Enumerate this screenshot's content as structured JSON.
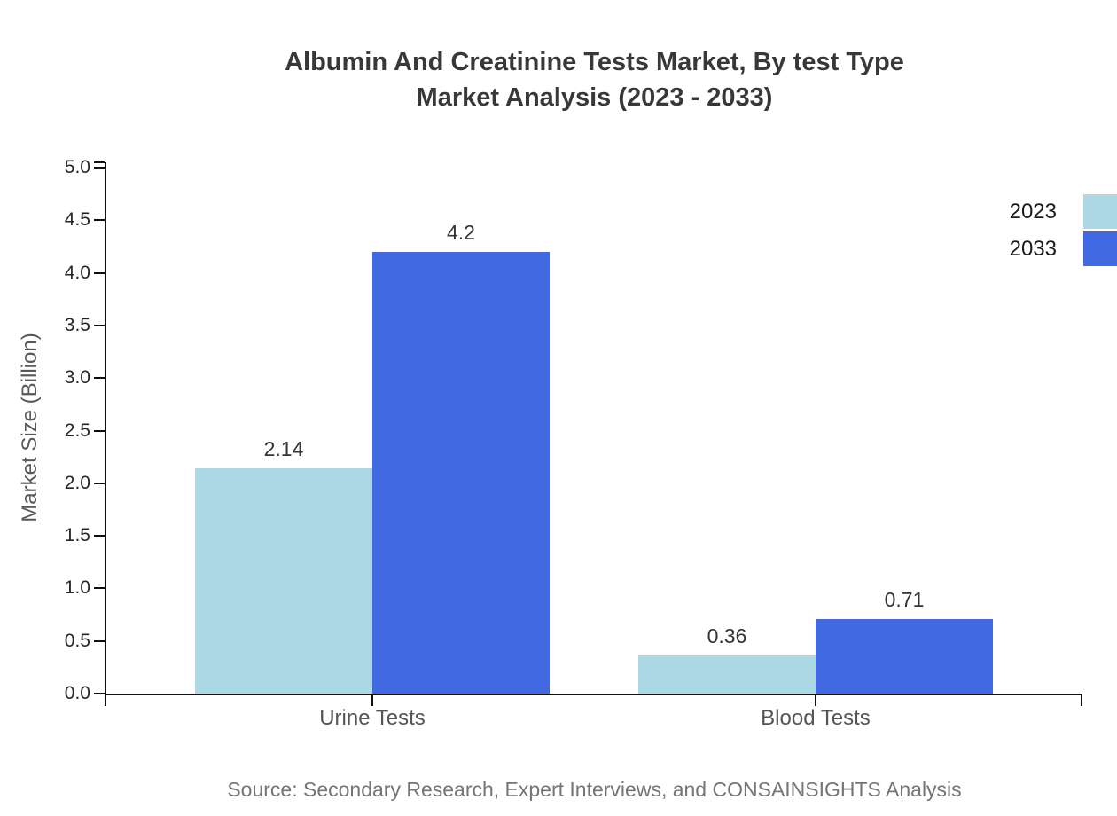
{
  "chart_data": {
    "type": "bar",
    "title": "Albumin And Creatinine Tests Market, By test Type Market Analysis (2023 - 2033)",
    "title_lines": [
      "Albumin And Creatinine Tests Market, By test Type",
      "Market Analysis (2023 - 2033)"
    ],
    "categories": [
      "Urine Tests",
      "Blood Tests"
    ],
    "series": [
      {
        "name": "2023",
        "color": "#ADD8E6",
        "values": [
          2.14,
          0.36
        ],
        "labels": [
          "2.14",
          "0.36"
        ]
      },
      {
        "name": "2033",
        "color": "#4169E1",
        "values": [
          4.2,
          0.71
        ],
        "labels": [
          "4.2",
          "0.71"
        ]
      }
    ],
    "xlabel": "",
    "ylabel": "Market Size (Billion)",
    "ylim": [
      0,
      5
    ],
    "ytick_labels": [
      "0.0",
      "0.5",
      "1.0",
      "1.5",
      "2.0",
      "2.5",
      "3.0",
      "3.5",
      "4.0",
      "4.5",
      "5.0"
    ],
    "grid": false,
    "legend_position": "top-right",
    "source": "Source: Secondary Research, Expert Interviews, and CONSAINSIGHTS Analysis"
  },
  "colors": {
    "series_2023": "#ADD8E6",
    "series_2033": "#4169E1",
    "axis": "#111111",
    "title_text": "#383838",
    "tick_text": "#262626",
    "category_text": "#555555",
    "value_label_text": "#333333",
    "legend_text": "#1a1a1a",
    "source_text": "#757575",
    "background": "#FFFFFF"
  }
}
